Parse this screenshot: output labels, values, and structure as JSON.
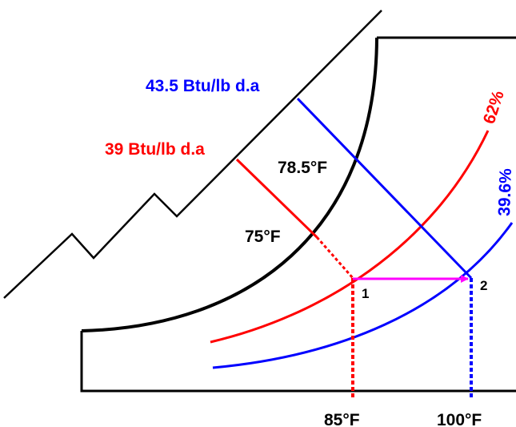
{
  "diagram": {
    "title": "",
    "colors": {
      "black": "#000000",
      "red": "#ff0000",
      "blue": "#0000ff",
      "magenta": "#ff00ff"
    },
    "enthalpy_lines": [
      {
        "label": "43.5 Btu/lb d.a",
        "color": "#0000ff"
      },
      {
        "label": "39 Btu/lb d.a",
        "color": "#ff0000"
      }
    ],
    "wet_bulb_labels": [
      {
        "label": "78.5°F"
      },
      {
        "label": "75°F"
      }
    ],
    "rh_curves": [
      {
        "label": "62%",
        "color": "#ff0000"
      },
      {
        "label": "39.6%",
        "color": "#0000ff"
      }
    ],
    "dry_bulb_axis": [
      {
        "label": "85°F",
        "color": "#ff0000"
      },
      {
        "label": "100°F",
        "color": "#0000ff"
      }
    ],
    "states": [
      {
        "label": "1"
      },
      {
        "label": "2"
      }
    ],
    "process": "sensible heating from state 1 to state 2"
  }
}
